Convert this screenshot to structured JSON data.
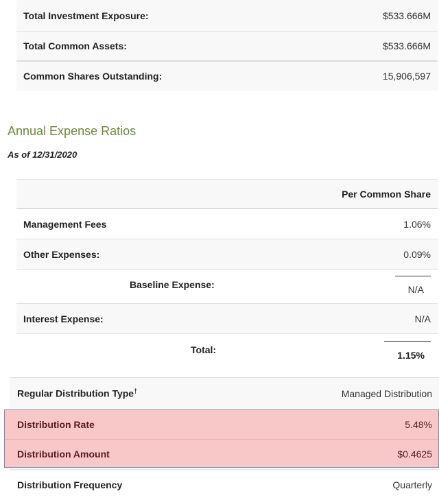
{
  "overview": {
    "rows": [
      {
        "label": "Total Investment Exposure:",
        "value": "$533.666M"
      },
      {
        "label": "Total Common Assets:",
        "value": "$533.666M"
      },
      {
        "label": "Common Shares Outstanding:",
        "value": "15,906,597"
      }
    ]
  },
  "expense": {
    "heading": "Annual Expense Ratios",
    "as_of": "As of 12/31/2020",
    "column_header": "Per Common Share",
    "management_fees": {
      "label": "Management Fees",
      "value": "1.06%"
    },
    "other_expenses": {
      "label": "Other Expenses:",
      "value": "0.09%"
    },
    "baseline_expense": {
      "label": "Baseline Expense:",
      "value": "N/A"
    },
    "interest_expense": {
      "label": "Interest Expense:",
      "value": "N/A"
    },
    "total": {
      "label": "Total:",
      "value": "1.15%"
    }
  },
  "distribution": {
    "type": {
      "label": "Regular Distribution Type",
      "marker": "†",
      "value": "Managed Distribution"
    },
    "rate": {
      "label": "Distribution Rate",
      "value": "5.48%"
    },
    "amount": {
      "label": "Distribution Amount",
      "value": "$0.4625"
    },
    "frequency": {
      "label": "Distribution Frequency",
      "value": "Quarterly"
    }
  },
  "colors": {
    "heading": "#6b8a3e",
    "highlight_bg": "#f8c8c9",
    "highlight_border": "#7a8aa8"
  }
}
